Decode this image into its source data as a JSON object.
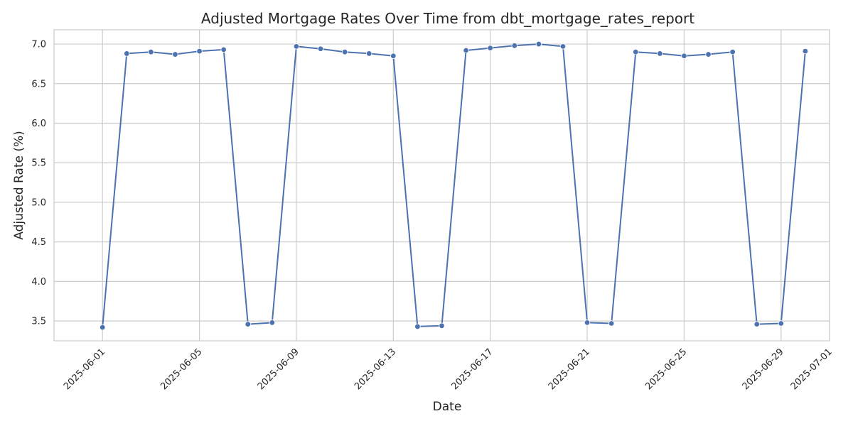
{
  "colors": {
    "series": "#4c72b0",
    "grid": "#cccccc",
    "text": "#262626",
    "background": "#ffffff"
  },
  "chart_data": {
    "type": "line",
    "title": "Adjusted Mortgage Rates Over Time from dbt_mortgage_rates_report",
    "xlabel": "Date",
    "ylabel": "Adjusted Rate (%)",
    "grid": true,
    "marker": "circle",
    "xlim": [
      "2025-05-30",
      "2025-07-01"
    ],
    "ylim": [
      3.25,
      7.18
    ],
    "x_ticks": [
      "2025-06-01",
      "2025-06-05",
      "2025-06-09",
      "2025-06-13",
      "2025-06-17",
      "2025-06-21",
      "2025-06-25",
      "2025-06-29",
      "2025-07-01"
    ],
    "y_ticks": [
      "3.5",
      "4.0",
      "4.5",
      "5.0",
      "5.5",
      "6.0",
      "6.5",
      "7.0"
    ],
    "series": [
      {
        "x": [
          "2025-06-01",
          "2025-06-02",
          "2025-06-03",
          "2025-06-04",
          "2025-06-05",
          "2025-06-06",
          "2025-06-07",
          "2025-06-08",
          "2025-06-09",
          "2025-06-10",
          "2025-06-11",
          "2025-06-12",
          "2025-06-13",
          "2025-06-14",
          "2025-06-15",
          "2025-06-16",
          "2025-06-17",
          "2025-06-18",
          "2025-06-19",
          "2025-06-20",
          "2025-06-21",
          "2025-06-22",
          "2025-06-23",
          "2025-06-24",
          "2025-06-25",
          "2025-06-26",
          "2025-06-27",
          "2025-06-28",
          "2025-06-29",
          "2025-06-30"
        ],
        "values": [
          3.42,
          6.88,
          6.9,
          6.87,
          6.91,
          6.93,
          3.46,
          3.48,
          6.97,
          6.94,
          6.9,
          6.88,
          6.85,
          3.43,
          3.44,
          6.92,
          6.95,
          6.98,
          7.0,
          6.97,
          3.48,
          3.47,
          6.9,
          6.88,
          6.85,
          6.87,
          6.9,
          3.46,
          3.47,
          6.91
        ]
      }
    ]
  }
}
